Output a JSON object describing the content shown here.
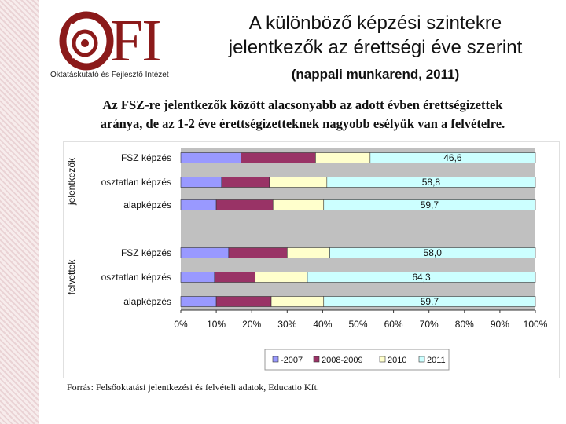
{
  "logo": {
    "text": "FI",
    "org": "Oktatáskutató és Fejlesztő Intézet"
  },
  "header": {
    "title_line1": "A különböző képzési szintekre",
    "title_line2": "jelentkezők az érettségi éve szerint",
    "subtitle": "(nappali munkarend, 2011)"
  },
  "lead": {
    "line1": "Az FSZ-re jelentkezők között alacsonyabb az adott évben érettségizettek",
    "line2": "aránya, de az 1-2 éve érettségizetteknek nagyobb esélyük van a felvételre."
  },
  "source": "Forrás: Felsőoktatási jelentkezési és felvételi adatok, Educatio Kft.",
  "chart_data": {
    "type": "bar",
    "orientation": "horizontal",
    "stacked": "100%",
    "groups": [
      {
        "label": "jelentkezők",
        "categories": [
          "FSZ képzés",
          "osztatlan képzés",
          "alapképzés"
        ]
      },
      {
        "label": "felvettek",
        "categories": [
          "FSZ képzés",
          "osztatlan képzés",
          "alapképzés"
        ]
      }
    ],
    "series": [
      {
        "name": "-2007",
        "color": "#9999ff",
        "values": [
          17.0,
          11.5,
          10.0,
          13.5,
          9.5,
          10.0
        ]
      },
      {
        "name": "2008-2009",
        "color": "#993366",
        "values": [
          21.0,
          13.5,
          16.0,
          16.5,
          11.5,
          15.5
        ]
      },
      {
        "name": "2010",
        "color": "#ffffcc",
        "values": [
          15.4,
          16.2,
          14.3,
          12.0,
          14.7,
          14.8
        ]
      },
      {
        "name": "2011",
        "color": "#ccffff",
        "values": [
          46.6,
          58.8,
          59.7,
          58.0,
          64.3,
          59.7
        ]
      }
    ],
    "data_labels": [
      "46,6",
      "58,8",
      "59,7",
      "58,0",
      "64,3",
      "59,7"
    ],
    "xticks": [
      "0%",
      "10%",
      "20%",
      "30%",
      "40%",
      "50%",
      "60%",
      "70%",
      "80%",
      "90%",
      "100%"
    ],
    "xlim": [
      0,
      100
    ],
    "legend_position": "bottom",
    "grid": false
  }
}
